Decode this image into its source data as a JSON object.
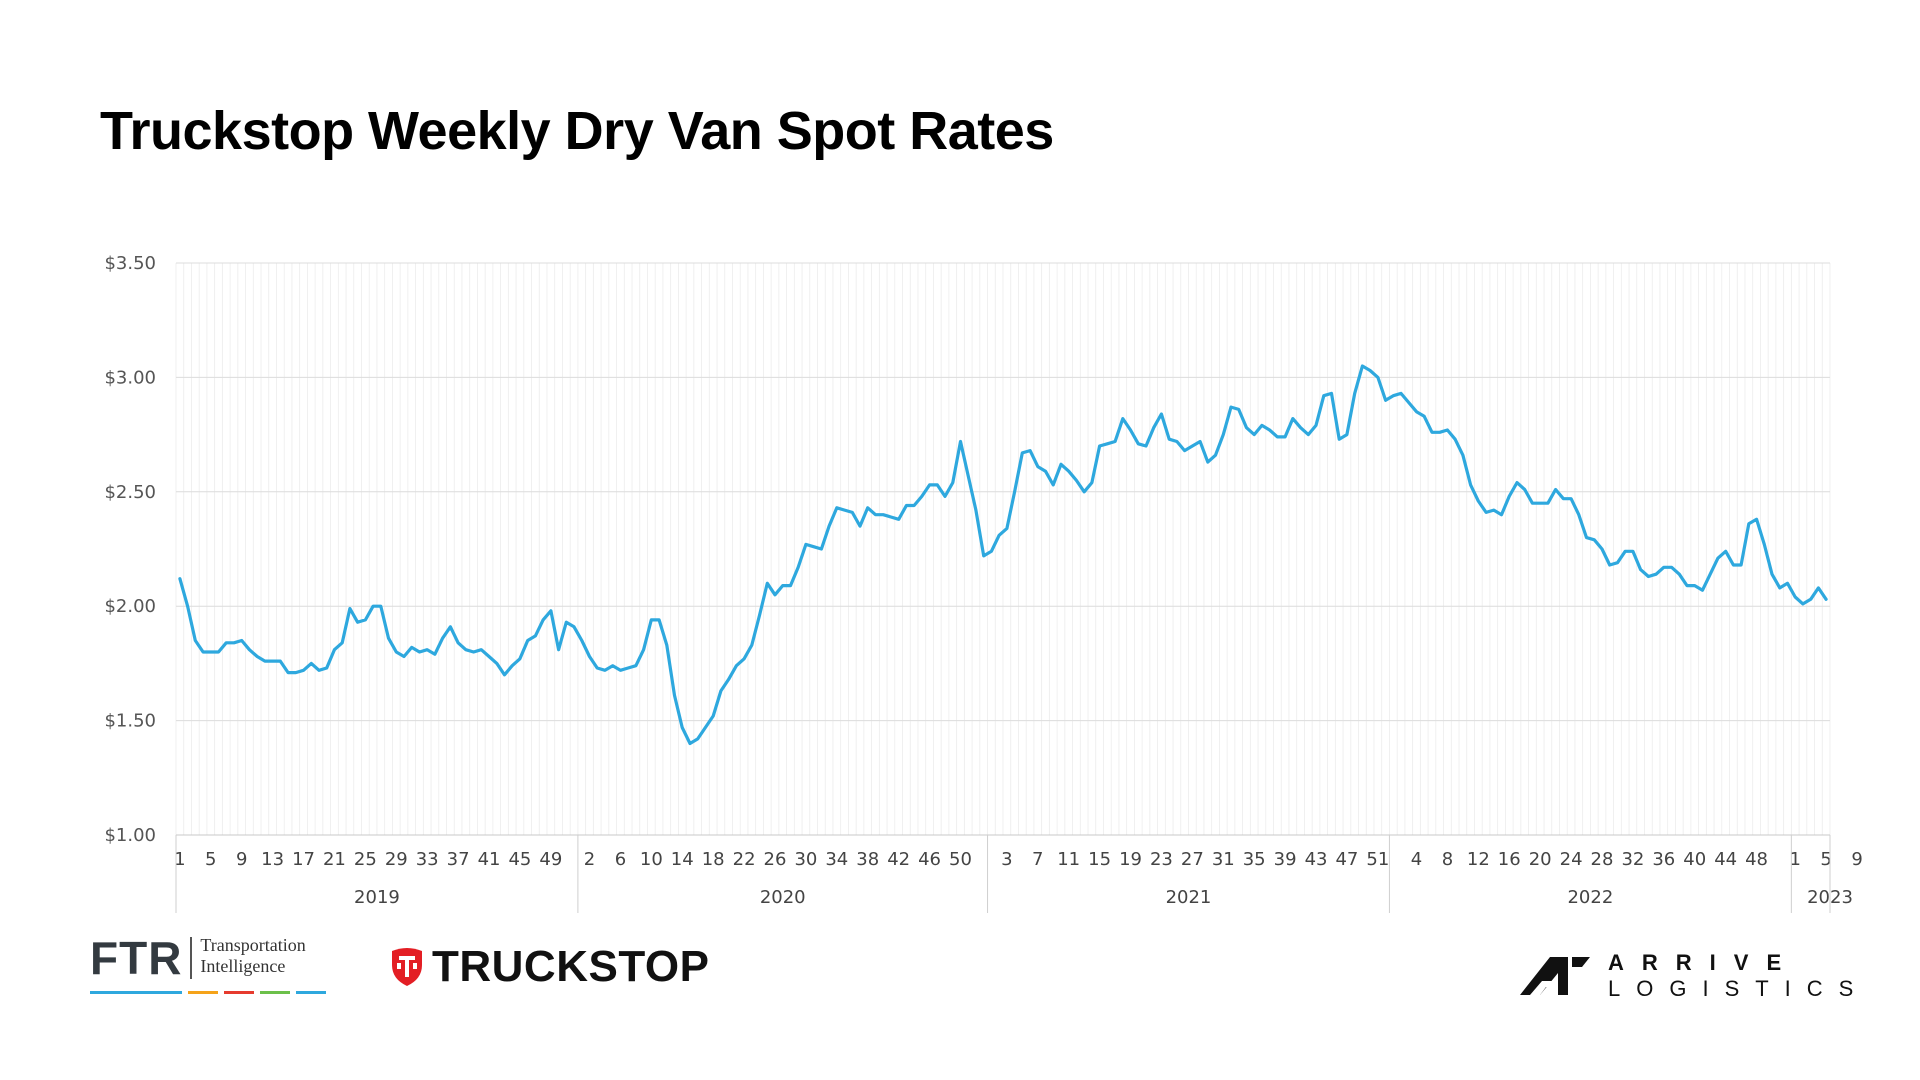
{
  "title": "Truckstop Weekly Dry Van Spot Rates",
  "chart_data": {
    "type": "line",
    "title": "Truckstop Weekly Dry Van Spot Rates",
    "xlabel": "",
    "ylabel": "",
    "ylim": [
      1.0,
      3.5
    ],
    "y_ticks": [
      "$1.00",
      "$1.50",
      "$2.00",
      "$2.50",
      "$3.00",
      "$3.50"
    ],
    "y_tick_values": [
      1.0,
      1.5,
      2.0,
      2.5,
      3.0,
      3.5
    ],
    "grid": true,
    "legend": "none",
    "years": [
      {
        "label": "2019",
        "weeks": 52
      },
      {
        "label": "2020",
        "weeks": 53
      },
      {
        "label": "2021",
        "weeks": 52
      },
      {
        "label": "2022",
        "weeks": 52
      },
      {
        "label": "2023",
        "weeks": 10
      }
    ],
    "x_tick_labels": [
      {
        "year": "2019",
        "weeks": [
          1,
          5,
          9,
          13,
          17,
          21,
          25,
          29,
          33,
          37,
          41,
          45,
          49
        ]
      },
      {
        "year": "2020",
        "weeks": [
          2,
          6,
          10,
          14,
          18,
          22,
          26,
          30,
          34,
          38,
          42,
          46,
          50
        ]
      },
      {
        "year": "2021",
        "weeks": [
          3,
          7,
          11,
          15,
          19,
          23,
          27,
          31,
          35,
          39,
          43,
          47,
          51
        ]
      },
      {
        "year": "2022",
        "weeks": [
          4,
          8,
          12,
          16,
          20,
          24,
          28,
          32,
          36,
          40,
          44,
          48
        ]
      },
      {
        "year": "2023",
        "weeks": [
          1,
          5,
          9
        ]
      }
    ],
    "series": [
      {
        "color": "#2ea8de",
        "values": [
          2.12,
          2.0,
          1.85,
          1.8,
          1.8,
          1.8,
          1.84,
          1.84,
          1.85,
          1.81,
          1.78,
          1.76,
          1.76,
          1.76,
          1.71,
          1.71,
          1.72,
          1.75,
          1.72,
          1.73,
          1.81,
          1.84,
          1.99,
          1.93,
          1.94,
          2.0,
          2.0,
          1.86,
          1.8,
          1.78,
          1.82,
          1.8,
          1.81,
          1.79,
          1.86,
          1.91,
          1.84,
          1.81,
          1.8,
          1.81,
          1.78,
          1.75,
          1.7,
          1.74,
          1.77,
          1.85,
          1.87,
          1.94,
          1.98,
          1.81,
          1.93,
          1.91,
          1.85,
          1.78,
          1.73,
          1.72,
          1.74,
          1.72,
          1.73,
          1.74,
          1.81,
          1.94,
          1.94,
          1.83,
          1.61,
          1.47,
          1.4,
          1.42,
          1.47,
          1.52,
          1.63,
          1.68,
          1.74,
          1.77,
          1.83,
          1.96,
          2.1,
          2.05,
          2.09,
          2.09,
          2.17,
          2.27,
          2.26,
          2.25,
          2.35,
          2.43,
          2.42,
          2.41,
          2.35,
          2.43,
          2.4,
          2.4,
          2.39,
          2.38,
          2.44,
          2.44,
          2.48,
          2.53,
          2.53,
          2.48,
          2.54,
          2.72,
          2.57,
          2.42,
          2.22,
          2.24,
          2.31,
          2.34,
          2.5,
          2.67,
          2.68,
          2.61,
          2.59,
          2.53,
          2.62,
          2.59,
          2.55,
          2.5,
          2.54,
          2.7,
          2.71,
          2.72,
          2.82,
          2.77,
          2.71,
          2.7,
          2.78,
          2.84,
          2.73,
          2.72,
          2.68,
          2.7,
          2.72,
          2.63,
          2.66,
          2.75,
          2.87,
          2.86,
          2.78,
          2.75,
          2.79,
          2.77,
          2.74,
          2.74,
          2.82,
          2.78,
          2.75,
          2.79,
          2.92,
          2.93,
          2.73,
          2.75,
          2.93,
          3.05,
          3.03,
          3.0,
          2.9,
          2.92,
          2.93,
          2.89,
          2.85,
          2.83,
          2.76,
          2.76,
          2.77,
          2.73,
          2.66,
          2.53,
          2.46,
          2.41,
          2.42,
          2.4,
          2.48,
          2.54,
          2.51,
          2.45,
          2.45,
          2.45,
          2.51,
          2.47,
          2.47,
          2.4,
          2.3,
          2.29,
          2.25,
          2.18,
          2.19,
          2.24,
          2.24,
          2.16,
          2.13,
          2.14,
          2.17,
          2.17,
          2.14,
          2.09,
          2.09,
          2.07,
          2.14,
          2.21,
          2.24,
          2.18,
          2.18,
          2.36,
          2.38,
          2.27,
          2.14,
          2.08,
          2.1,
          2.04,
          2.01,
          2.03,
          2.08,
          2.03
        ]
      }
    ]
  },
  "logos": {
    "ftr_mark": "FTR",
    "ftr_sub_1": "Transportation",
    "ftr_sub_2": "Intelligence",
    "ftr_bar_colors": [
      "#2ea8de",
      "#f5a31a",
      "#e63b2e",
      "#6cc04a",
      "#2ea8de"
    ],
    "truckstop": "TRUCKSTOP",
    "truckstop_color": "#e31e24",
    "arrive_1": "ARRIVE",
    "arrive_2": "LOGISTICS"
  }
}
